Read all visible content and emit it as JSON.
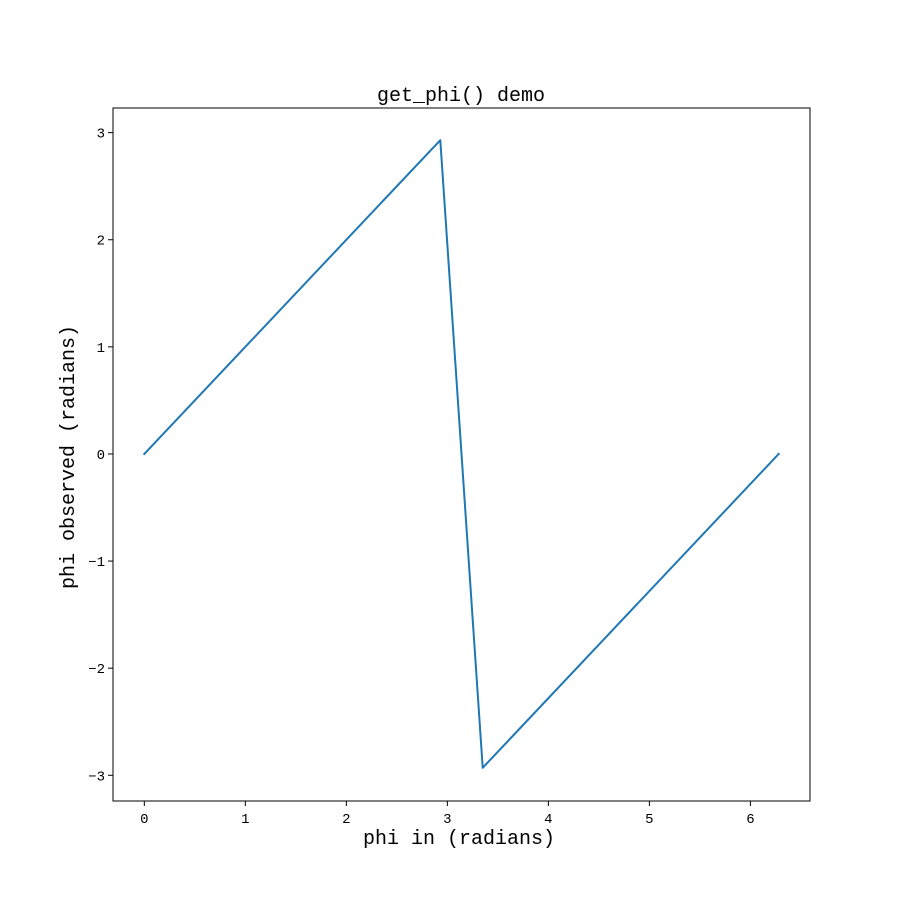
{
  "chart_data": {
    "type": "line",
    "title": "get_phi() demo",
    "xlabel": "phi in (radians)",
    "ylabel": "phi observed (radians)",
    "xlim": [
      -0.31,
      6.59
    ],
    "ylim": [
      -3.24,
      3.23
    ],
    "x_ticks": [
      0,
      1,
      2,
      3,
      4,
      5,
      6
    ],
    "x_tick_labels": [
      "0",
      "1",
      "2",
      "3",
      "4",
      "5",
      "6"
    ],
    "y_ticks": [
      3,
      2,
      1,
      0,
      -1,
      -2,
      -3
    ],
    "y_tick_labels": [
      "3",
      "2",
      "1",
      "0",
      "−1",
      "−2",
      "−3"
    ],
    "grid": false,
    "series": [
      {
        "color": "#1f77b4",
        "x": [
          0,
          2.93,
          3.35,
          6.28
        ],
        "y": [
          0,
          2.93,
          -2.93,
          0
        ]
      }
    ]
  }
}
